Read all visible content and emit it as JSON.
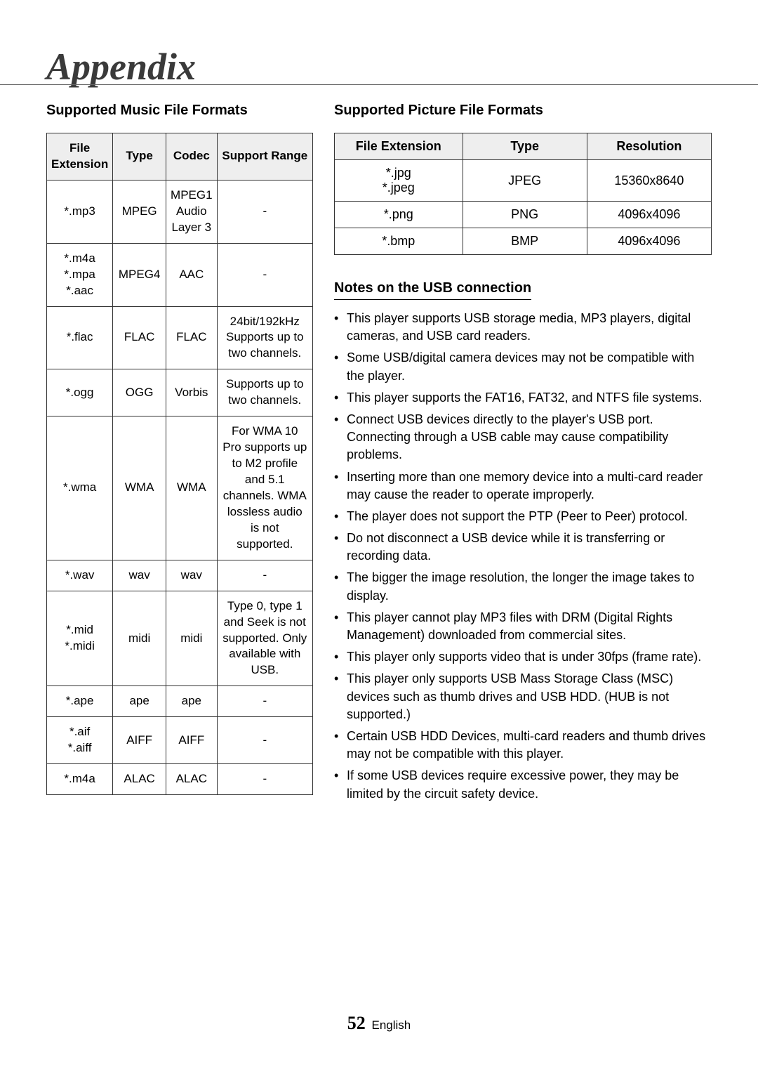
{
  "page": {
    "title": "Appendix",
    "pageNumber": "52",
    "pageLang": "English"
  },
  "music": {
    "heading": "Supported Music File Formats",
    "columns": [
      "File Extension",
      "Type",
      "Codec",
      "Support Range"
    ],
    "rows": [
      {
        "ext": "*.mp3",
        "type": "MPEG",
        "codec": "MPEG1 Audio Layer 3",
        "range": "-"
      },
      {
        "ext": "*.m4a *.mpa *.aac",
        "type": "MPEG4",
        "codec": "AAC",
        "range": "-"
      },
      {
        "ext": "*.flac",
        "type": "FLAC",
        "codec": "FLAC",
        "range": "24bit/192kHz Supports up to two channels."
      },
      {
        "ext": "*.ogg",
        "type": "OGG",
        "codec": "Vorbis",
        "range": "Supports up to two channels."
      },
      {
        "ext": "*.wma",
        "type": "WMA",
        "codec": "WMA",
        "range": "For WMA 10 Pro supports up to M2 profile and 5.1 channels. WMA lossless audio is not supported."
      },
      {
        "ext": "*.wav",
        "type": "wav",
        "codec": "wav",
        "range": "-"
      },
      {
        "ext": "*.mid *.midi",
        "type": "midi",
        "codec": "midi",
        "range": "Type 0, type 1 and Seek is not supported. Only available with USB."
      },
      {
        "ext": "*.ape",
        "type": "ape",
        "codec": "ape",
        "range": "-"
      },
      {
        "ext": "*.aif *.aiff",
        "type": "AIFF",
        "codec": "AIFF",
        "range": "-"
      },
      {
        "ext": "*.m4a",
        "type": "ALAC",
        "codec": "ALAC",
        "range": "-"
      }
    ]
  },
  "picture": {
    "heading": "Supported Picture File Formats",
    "columns": [
      "File Extension",
      "Type",
      "Resolution"
    ],
    "rows": [
      {
        "ext": "*.jpg *.jpeg",
        "type": "JPEG",
        "res": "15360x8640"
      },
      {
        "ext": "*.png",
        "type": "PNG",
        "res": "4096x4096"
      },
      {
        "ext": "*.bmp",
        "type": "BMP",
        "res": "4096x4096"
      }
    ]
  },
  "usb": {
    "heading": "Notes on the USB connection",
    "notes": [
      "This player supports USB storage media, MP3 players, digital cameras, and USB card readers.",
      "Some USB/digital camera devices may not be compatible with the player.",
      "This player supports the FAT16, FAT32, and NTFS file systems.",
      "Connect USB devices directly to the player's USB port. Connecting through a USB cable may cause compatibility problems.",
      "Inserting more than one memory device into a multi-card reader may cause the reader to operate improperly.",
      "The player does not support the PTP (Peer to Peer) protocol.",
      "Do not disconnect a USB device while it is transferring or recording data.",
      "The bigger the image resolution, the longer the image takes to display.",
      "This player cannot play MP3 files with DRM (Digital Rights Management) downloaded from commercial sites.",
      "This player only supports video that is under 30fps (frame rate).",
      "This player only supports USB Mass Storage Class (MSC) devices such as thumb drives and USB HDD. (HUB is not supported.)",
      "Certain USB HDD Devices, multi-card readers and thumb drives may not be compatible with this player.",
      "If some USB devices require excessive power, they may be limited by the circuit safety device."
    ]
  }
}
